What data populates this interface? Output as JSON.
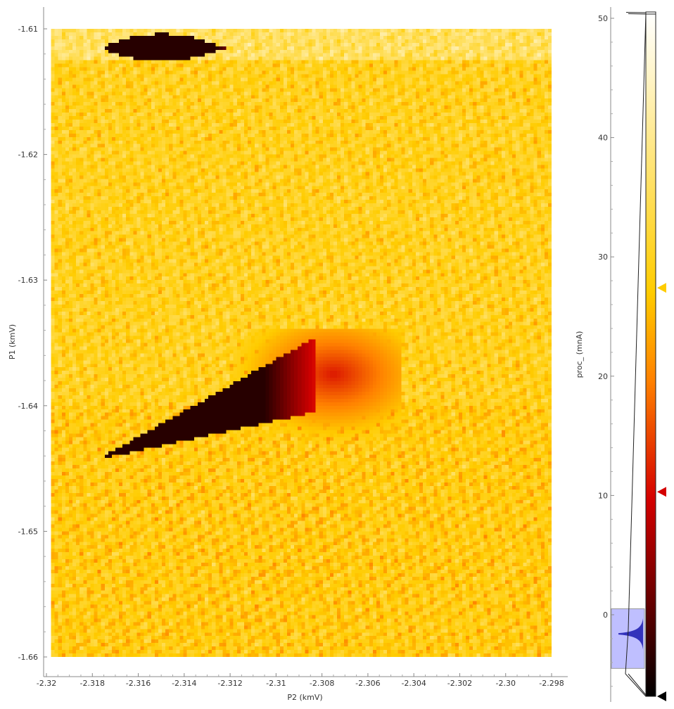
{
  "chart_data": [
    {
      "type": "heatmap",
      "xlabel": "P2 (kmV)",
      "ylabel": "P1 (kmV)",
      "xlim": [
        -2.32,
        -2.298
      ],
      "ylim": [
        -1.66,
        -1.61
      ],
      "x_extent": [
        -2.3198,
        -2.298
      ],
      "y_extent": [
        -1.66,
        -1.61
      ],
      "x_ticks": [
        "-2.32",
        "-2.318",
        "-2.316",
        "-2.314",
        "-2.312",
        "-2.31",
        "-2.308",
        "-2.306",
        "-2.304",
        "-2.302",
        "-2.30",
        "-2.298"
      ],
      "x_tick_values": [
        -2.32,
        -2.318,
        -2.316,
        -2.314,
        -2.312,
        -2.31,
        -2.308,
        -2.306,
        -2.304,
        -2.302,
        -2.3,
        -2.298
      ],
      "y_ticks": [
        "-1.61",
        "-1.62",
        "-1.63",
        "-1.64",
        "-1.65",
        "-1.66"
      ],
      "y_tick_values": [
        -1.61,
        -1.62,
        -1.63,
        -1.64,
        -1.65,
        -1.66
      ],
      "background_value": 30,
      "features": [
        {
          "shape": "top-blob",
          "x_range": [
            -2.3175,
            -2.3105
          ],
          "y_center": -1.6115,
          "min_value": -3
        },
        {
          "shape": "triangle",
          "vertices": [
            [
              -2.3178,
              -1.6443
            ],
            [
              -2.3082,
              -1.6345
            ],
            [
              -2.3082,
              -1.6405
            ]
          ],
          "min_value": -3
        },
        {
          "shape": "tail",
          "x_range": [
            -2.313,
            -2.3045
          ],
          "y_range": [
            -1.646,
            -1.634
          ],
          "min_value": 12
        }
      ]
    },
    {
      "type": "histogram",
      "ylabel": "proc_ (mnA)",
      "ylim": [
        -6.5,
        51
      ],
      "y_ticks": [
        "50",
        "40",
        "30",
        "20",
        "10",
        "0"
      ],
      "y_tick_values": [
        50,
        40,
        30,
        20,
        10,
        0
      ],
      "colormap": [
        "#000000",
        "#d40000",
        "#ff8000",
        "#ffcc00",
        "#fff6d0",
        "#ffffff"
      ],
      "colormap_stops": [
        -6,
        10.3,
        20,
        27.4,
        46,
        50.5
      ],
      "levels": [
        {
          "name": "white",
          "value": 50.5,
          "color": "#ffffff"
        },
        {
          "name": "yellow",
          "value": 27.4,
          "color": "#ffcc00"
        },
        {
          "name": "red",
          "value": 10.3,
          "color": "#d40000"
        },
        {
          "name": "black",
          "value": -6,
          "color": "#000000"
        }
      ],
      "region": [
        -4.5,
        0.5
      ],
      "region_color": "#b8b8ff",
      "peak_value": -1.6
    }
  ]
}
